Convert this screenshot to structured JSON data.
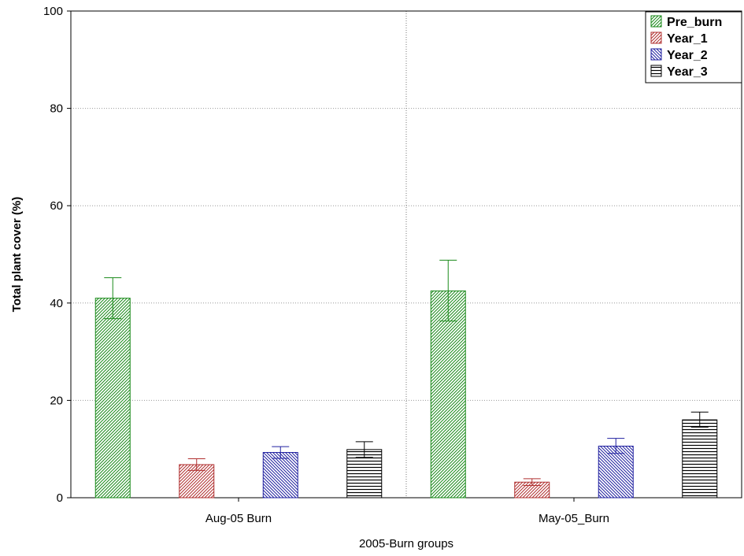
{
  "chart_data": {
    "type": "bar",
    "title": "",
    "xlabel": "2005-Burn groups",
    "ylabel": "Total plant cover (%)",
    "ylim": [
      0,
      100
    ],
    "yticks": [
      0,
      20,
      40,
      60,
      80,
      100
    ],
    "grid": "dotted, y gridlines and vertical separator between groups",
    "legend_placement": "top-right",
    "categories": [
      "Aug-05 Burn",
      "May-05_Burn"
    ],
    "series": [
      {
        "name": "Pre_burn",
        "color": "#1a8a1a",
        "pattern": "diag-right",
        "values": [
          41.0,
          42.5
        ],
        "err_low": [
          36.8,
          36.3
        ],
        "err_high": [
          45.2,
          48.8
        ]
      },
      {
        "name": "Year_1",
        "color": "#b03030",
        "pattern": "diag-right",
        "values": [
          6.8,
          3.2
        ],
        "err_low": [
          5.6,
          2.5
        ],
        "err_high": [
          8.0,
          3.9
        ]
      },
      {
        "name": "Year_2",
        "color": "#2020a0",
        "pattern": "diag-left",
        "values": [
          9.3,
          10.6
        ],
        "err_low": [
          8.1,
          9.1
        ],
        "err_high": [
          10.5,
          12.2
        ]
      },
      {
        "name": "Year_3",
        "color": "#000000",
        "pattern": "horizontal",
        "values": [
          9.9,
          16.0
        ],
        "err_low": [
          8.3,
          14.5
        ],
        "err_high": [
          11.5,
          17.6
        ]
      }
    ]
  }
}
